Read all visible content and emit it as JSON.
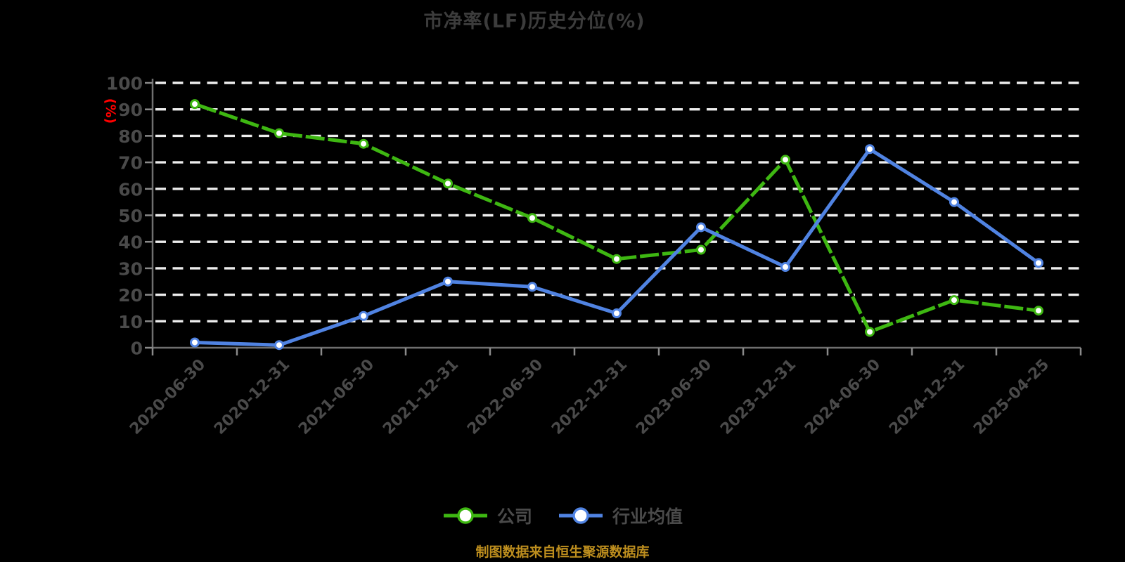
{
  "chart_data": {
    "type": "line",
    "title": "市净率(LF)历史分位(%)",
    "ylabel": "(%)",
    "xlabel": "",
    "ylim": [
      0,
      100
    ],
    "ytick_step": 10,
    "yticks": [
      0,
      10,
      20,
      30,
      40,
      50,
      60,
      70,
      80,
      90,
      100
    ],
    "categories": [
      "2020-06-30",
      "2020-12-31",
      "2021-06-30",
      "2021-12-31",
      "2022-06-30",
      "2022-12-31",
      "2023-06-30",
      "2023-12-31",
      "2024-06-30",
      "2024-12-31",
      "2025-04-25"
    ],
    "series": [
      {
        "name": "公司",
        "color": "#3EB712",
        "line_style": "solid-with-dark-dash-overlay",
        "marker": "circle-white-fill",
        "values": [
          92,
          81,
          77,
          62,
          49,
          33.5,
          37,
          71,
          6,
          18,
          14
        ]
      },
      {
        "name": "行业均值",
        "color": "#5083E2",
        "line_style": "solid",
        "marker": "circle-white-fill",
        "values": [
          2,
          1,
          12,
          25,
          23,
          13,
          45.5,
          30.5,
          75,
          55,
          32
        ]
      }
    ],
    "grid": "horizontal-dashed-white",
    "legend_position": "bottom-center",
    "background": "#000000"
  },
  "caption": "制图数据来自恒生聚源数据库",
  "colors": {
    "title_text": "#3C3C3C",
    "axis_text": "#4A4A4A",
    "axis_line": "#6F6F6F",
    "tick_line": "#8A8A8A",
    "gridline": "#EDEDED",
    "y_unit_red": "#FF0000",
    "caption_gold": "#BD8E1E",
    "company_green": "#3EB712",
    "industry_blue": "#5083E2",
    "marker_fill": "#FFFFFF"
  }
}
